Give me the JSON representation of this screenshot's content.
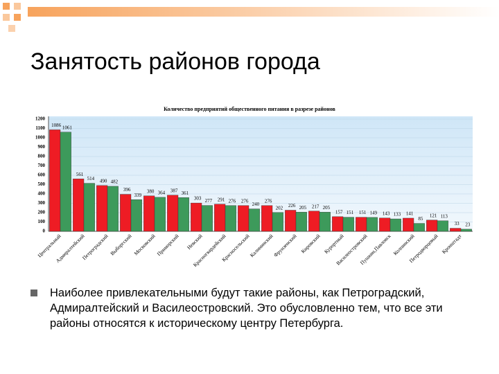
{
  "slide": {
    "title": "Занятость районов города",
    "bullet": "Наиболее привлекательными будут такие районы, как Петроградский, Адмиралтейский и Василеостровский. Это обусловленно тем, что все эти районы относятся к историческому центру Петербурга."
  },
  "chart_data": {
    "type": "bar",
    "title": "Количество предприятий общественного питания в разрезе районов",
    "categories": [
      "Центральный",
      "Адмиралтейский",
      "Петроградский",
      "Выборгский",
      "Московский",
      "Приморский",
      "Невский",
      "Красногвардейский",
      "Красносельский",
      "Калининский",
      "Фрунзенский",
      "Кировский",
      "Курортный",
      "Василеостровский",
      "Пушкин,Павловск",
      "Колпинский",
      "Петродворцовый",
      "Кронштадт"
    ],
    "series": [
      {
        "color": "#ee1c24",
        "values": [
          1086,
          561,
          490,
          396,
          380,
          387,
          303,
          291,
          276,
          276,
          226,
          217,
          157,
          151,
          143,
          141,
          121,
          33
        ]
      },
      {
        "color": "#3d9a5b",
        "values": [
          1061,
          514,
          482,
          339,
          364,
          361,
          277,
          276,
          240,
          202,
          205,
          205,
          151,
          149,
          133,
          85,
          113,
          23
        ]
      }
    ],
    "ylim": [
      0,
      1200
    ],
    "yticks": [
      0,
      100,
      200,
      300,
      400,
      500,
      600,
      700,
      800,
      900,
      1000,
      1100,
      1200
    ],
    "grid": true
  }
}
